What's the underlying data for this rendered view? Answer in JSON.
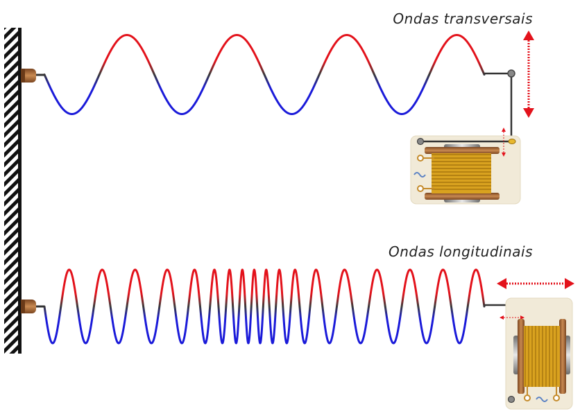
{
  "labels": {
    "transverse": "Ondas transversais",
    "longitudinal": "Ondas longitudinais"
  },
  "colors": {
    "crest": "#e3121b",
    "trough": "#1a1ad9",
    "mid": "#3a3a3a",
    "arrow": "#e3121b",
    "wall": "#111111",
    "device_panel": "#f1ead8",
    "coil_gold": "#d9a21f",
    "coil_copper": "#b8743a",
    "ac_symbol": "#5b82c4"
  },
  "icons": {
    "transverse_oscillation": "double-arrow-vertical-icon",
    "longitudinal_oscillation": "double-arrow-horizontal-icon",
    "ac_source": "tilde-ac-icon"
  },
  "waves": {
    "transverse": {
      "type": "transverse",
      "cycles": 4
    },
    "longitudinal": {
      "type": "longitudinal",
      "cycles": 18,
      "compression": "center"
    }
  }
}
